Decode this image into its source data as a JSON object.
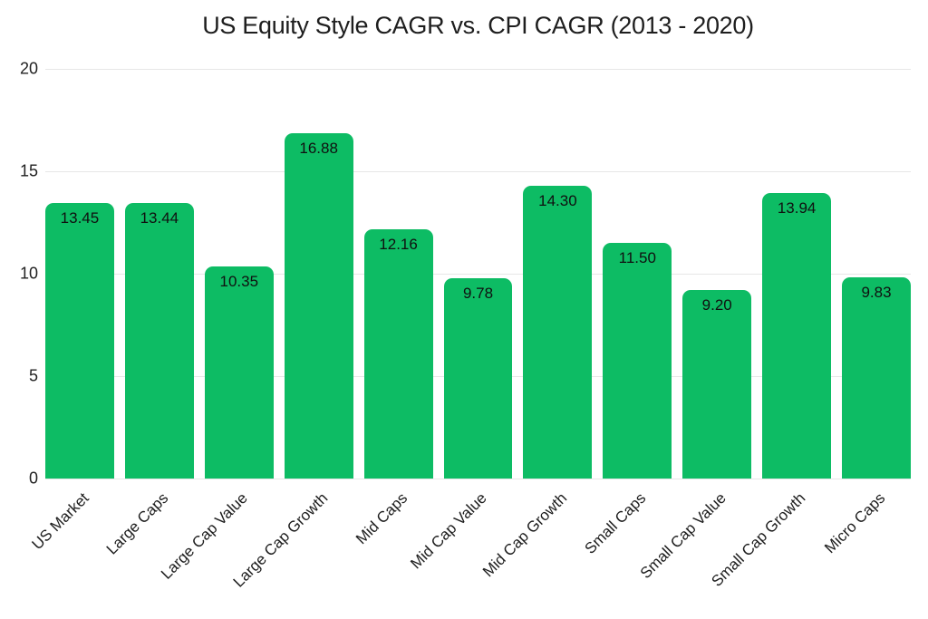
{
  "chart_data": {
    "type": "bar",
    "title": "US Equity Style CAGR vs. CPI CAGR (2013 - 2020)",
    "categories": [
      "US Market",
      "Large Caps",
      "Large Cap Value",
      "Large Cap Growth",
      "Mid Caps",
      "Mid Cap Value",
      "Mid Cap Growth",
      "Small Caps",
      "Small Cap Value",
      "Small Cap Growth",
      "Micro Caps"
    ],
    "values": [
      13.45,
      13.44,
      10.35,
      16.88,
      12.16,
      9.78,
      14.3,
      11.5,
      9.2,
      13.94,
      9.83
    ],
    "value_labels": [
      "13.45",
      "13.44",
      "10.35",
      "16.88",
      "12.16",
      "9.78",
      "14.30",
      "11.50",
      "9.20",
      "13.94",
      "9.83"
    ],
    "xlabel": "",
    "ylabel": "",
    "ylim": [
      0,
      20
    ],
    "yticks": [
      0,
      5,
      10,
      15,
      20
    ],
    "grid": true,
    "legend": false,
    "colors": {
      "bar_fill": "#0dbc64",
      "value_label": "#101010",
      "axis_text": "#222222",
      "gridline": "#e7e7e7",
      "title_text": "#1e1e1e",
      "background": "#ffffff"
    }
  }
}
